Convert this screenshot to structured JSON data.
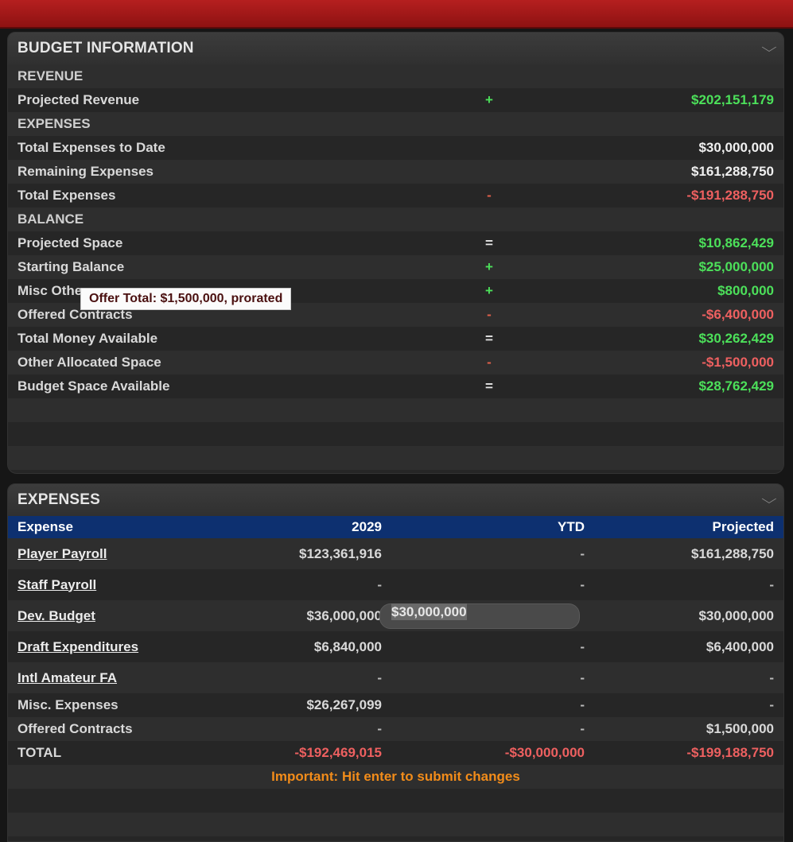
{
  "budget_panel": {
    "title": "BUDGET INFORMATION",
    "rows": [
      {
        "label": "REVENUE",
        "op": "",
        "value": "",
        "kind": "section"
      },
      {
        "label": "Projected Revenue",
        "op": "+",
        "value": "$202,151,179",
        "kind": "green"
      },
      {
        "label": "EXPENSES",
        "op": "",
        "value": "",
        "kind": "section"
      },
      {
        "label": "Total Expenses to Date",
        "op": "",
        "value": "$30,000,000",
        "kind": "white"
      },
      {
        "label": "Remaining Expenses",
        "op": "",
        "value": "$161,288,750",
        "kind": "white"
      },
      {
        "label": "Total Expenses",
        "op": "-",
        "value": "-$191,288,750",
        "kind": "red"
      },
      {
        "label": "BALANCE",
        "op": "",
        "value": "",
        "kind": "section"
      },
      {
        "label": "Projected Space",
        "op": "=",
        "value": "$10,862,429",
        "kind": "green"
      },
      {
        "label": "Starting Balance",
        "op": "+",
        "value": "$25,000,000",
        "kind": "green"
      },
      {
        "label": "Misc Othe",
        "op": "+",
        "value": "$800,000",
        "kind": "green"
      },
      {
        "label": "Offered Contracts",
        "op": "-",
        "value": "-$6,400,000",
        "kind": "red"
      },
      {
        "label": "Total Money Available",
        "op": "=",
        "value": "$30,262,429",
        "kind": "green"
      },
      {
        "label": "Other Allocated Space",
        "op": "-",
        "value": "-$1,500,000",
        "kind": "red"
      },
      {
        "label": "Budget Space Available",
        "op": "=",
        "value": "$28,762,429",
        "kind": "green"
      }
    ],
    "tooltip": "Offer Total: $1,500,000, prorated"
  },
  "expenses_panel": {
    "title": "EXPENSES",
    "columns": [
      "Expense",
      "2029",
      "YTD",
      "Projected"
    ],
    "rows": [
      {
        "name": "Player Payroll",
        "link": true,
        "y2029": "$123,361,916",
        "ytd": "-",
        "projected": "$161,288,750"
      },
      {
        "name": "Staff Payroll",
        "link": true,
        "y2029": "-",
        "ytd": "-",
        "projected": "-"
      },
      {
        "name": "Dev. Budget",
        "link": true,
        "y2029": "$36,000,000",
        "ytd": "$30,000,000",
        "projected": "$30,000,000"
      },
      {
        "name": "Draft Expenditures",
        "link": true,
        "y2029": "$6,840,000",
        "ytd": "-",
        "projected": "$6,400,000"
      },
      {
        "name": "Intl Amateur FA",
        "link": true,
        "y2029": "-",
        "ytd": "-",
        "projected": "-"
      },
      {
        "name": "Misc. Expenses",
        "link": false,
        "y2029": "$26,267,099",
        "ytd": "-",
        "projected": "-"
      },
      {
        "name": "Offered Contracts",
        "link": false,
        "y2029": "-",
        "ytd": "-",
        "projected": "$1,500,000"
      }
    ],
    "total": {
      "name": "TOTAL",
      "y2029": "-$192,469,015",
      "ytd": "-$30,000,000",
      "projected": "-$199,188,750"
    },
    "important": "Important: Hit enter to submit changes"
  }
}
